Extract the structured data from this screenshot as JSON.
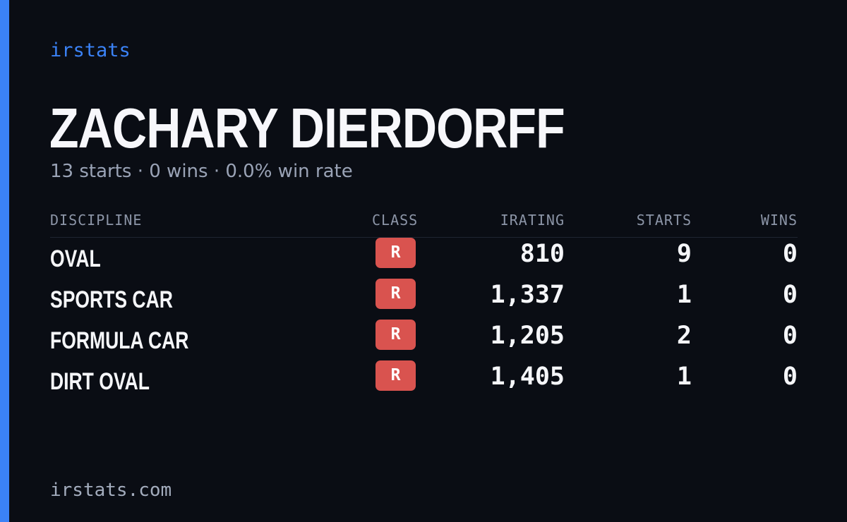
{
  "brand": "irstats",
  "driver": {
    "name": "ZACHARY DIERDORFF",
    "summary": "13 starts · 0 wins · 0.0% win rate"
  },
  "table": {
    "headers": {
      "discipline": "DISCIPLINE",
      "class": "CLASS",
      "irating": "IRATING",
      "starts": "STARTS",
      "wins": "WINS"
    },
    "rows": [
      {
        "discipline": "OVAL",
        "class": "R",
        "irating": "810",
        "starts": "9",
        "wins": "0"
      },
      {
        "discipline": "SPORTS CAR",
        "class": "R",
        "irating": "1,337",
        "starts": "1",
        "wins": "0"
      },
      {
        "discipline": "FORMULA CAR",
        "class": "R",
        "irating": "1,205",
        "starts": "2",
        "wins": "0"
      },
      {
        "discipline": "DIRT OVAL",
        "class": "R",
        "irating": "1,405",
        "starts": "1",
        "wins": "0"
      }
    ]
  },
  "footer": "irstats.com",
  "colors": {
    "background": "#0a0d14",
    "accent": "#3b82f6",
    "class_r_badge": "#d9534f",
    "muted_text": "#9aa3b6"
  }
}
